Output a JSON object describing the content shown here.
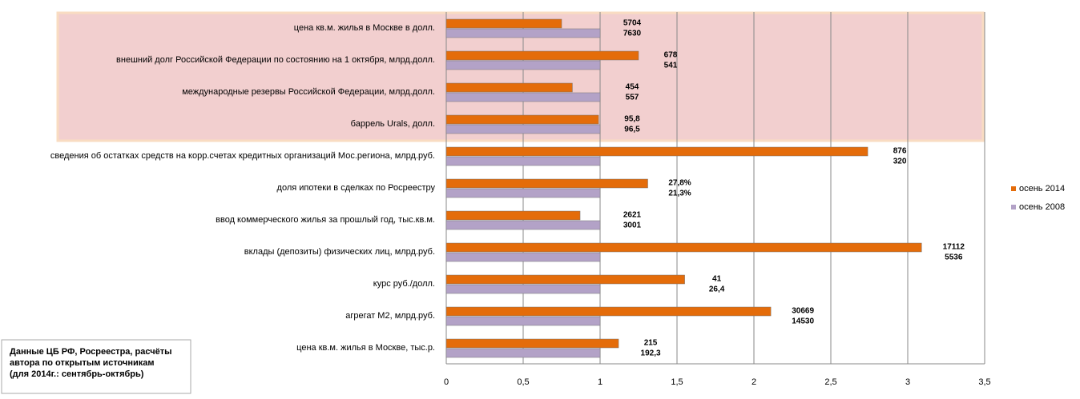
{
  "chart_data": {
    "type": "bar",
    "orientation": "horizontal",
    "categories": [
      "цена кв.м. жилья в Москве в долл.",
      "внешний долг Российской Федерации по состоянию на 1 октября,  млрд.долл.",
      "международные резервы Российской Федерации, млрд.долл.",
      "баррель Urals, долл.",
      "сведения об остатках средств на корр.счетах кредитных организаций Мос.региона, млрд.руб.",
      "доля ипотеки в сделках по Росреестру",
      "ввод коммерческого жилья за прошлый год, тыс.кв.м.",
      "вклады (депозиты) физических лиц, млрд.руб.",
      "курс руб./долл.",
      "агрегат М2, млрд.руб.",
      "цена кв.м. жилья в Москве, тыс.р."
    ],
    "series": [
      {
        "name": "осень 2014",
        "color": "#e46c0a",
        "values": [
          0.75,
          1.25,
          0.82,
          0.99,
          2.74,
          1.31,
          0.87,
          3.09,
          1.55,
          2.11,
          1.12
        ],
        "data_labels": [
          "5704",
          "678",
          "454",
          "95,8",
          "876",
          "27,8%",
          "2621",
          "17112",
          "41",
          "30669",
          "215"
        ]
      },
      {
        "name": "осень 2008",
        "color": "#b3a2c7",
        "values": [
          1,
          1,
          1,
          1,
          1,
          1,
          1,
          1,
          1,
          1,
          1
        ],
        "data_labels": [
          "7630",
          "541",
          "557",
          "96,5",
          "320",
          "21,3%",
          "3001",
          "5536",
          "26,4",
          "14530",
          "192,3"
        ]
      }
    ],
    "xlim": [
      0,
      3.5
    ],
    "xticks": [
      0,
      {
        "value": 0.5,
        "label": "0,5"
      },
      1,
      {
        "value": 1.5,
        "label": "1,5"
      },
      2,
      {
        "value": 2.5,
        "label": "2,5"
      },
      3,
      {
        "value": 3.5,
        "label": "3,5"
      }
    ],
    "grid": true,
    "legend": "right",
    "annotation": [
      "Данные ЦБ РФ, Росреестра, расчёты",
      "автора по открытым источникам",
      "(для 2014г.: сентябрь-октябрь)"
    ]
  }
}
